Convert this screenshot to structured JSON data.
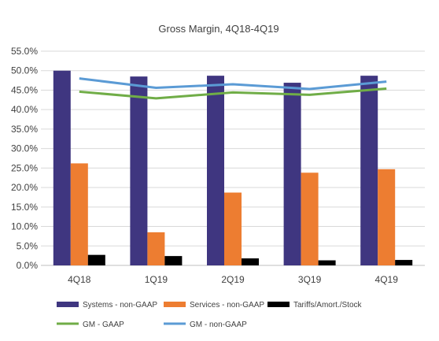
{
  "chart_data": {
    "type": "bar",
    "title": "Gross Margin, 4Q18-4Q19",
    "categories": [
      "4Q18",
      "1Q19",
      "2Q19",
      "3Q19",
      "4Q19"
    ],
    "ylim": [
      0,
      55
    ],
    "yticks": [
      "0.0%",
      "5.0%",
      "10.0%",
      "15.0%",
      "20.0%",
      "25.0%",
      "30.0%",
      "35.0%",
      "40.0%",
      "45.0%",
      "50.0%",
      "55.0%"
    ],
    "grid": true,
    "legend_position": "bottom",
    "bar_series": [
      {
        "name": "Systems - non-GAAP",
        "color": "#3f3680",
        "values": [
          50.0,
          48.5,
          48.7,
          46.9,
          48.7
        ]
      },
      {
        "name": "Services - non-GAAP",
        "color": "#ed7d31",
        "values": [
          26.2,
          8.5,
          18.7,
          23.8,
          24.7
        ]
      },
      {
        "name": "Tariffs/Amort./Stock",
        "color": "#000000",
        "values": [
          2.7,
          2.4,
          1.8,
          1.3,
          1.4
        ]
      }
    ],
    "line_series": [
      {
        "name": "GM - GAAP",
        "color": "#70ad47",
        "values": [
          44.6,
          42.9,
          44.4,
          43.8,
          45.4
        ]
      },
      {
        "name": "GM - non-GAAP",
        "color": "#5b9bd5",
        "values": [
          48.0,
          45.6,
          46.5,
          45.3,
          47.2
        ]
      }
    ]
  }
}
